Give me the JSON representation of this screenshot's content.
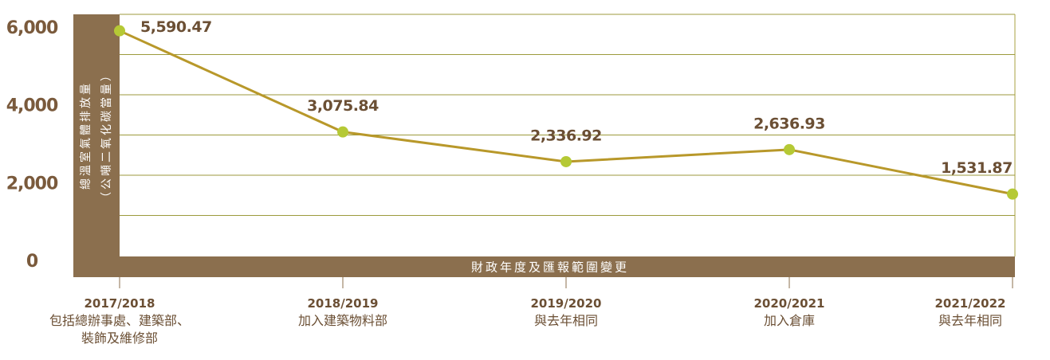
{
  "chart_data": {
    "type": "line",
    "y_axis_label": [
      "總溫室氣體排放量",
      "（公噸二氧化碳當量）"
    ],
    "x_axis_label": "財政年度及匯報範圍變更",
    "categories": [
      "2017/2018",
      "2018/2019",
      "2019/2020",
      "2020/2021",
      "2021/2022"
    ],
    "category_notes": [
      "包括總辦事處、建築部、裝飾及維修部",
      "加入建築物料部",
      "與去年相同",
      "加入倉庫",
      "與去年相同"
    ],
    "series": [
      {
        "name": "總溫室氣體排放量",
        "color": "#b8982a",
        "marker_color": "#b5c935",
        "values": [
          5590.47,
          3075.84,
          2336.92,
          2636.93,
          1531.87
        ],
        "value_labels": [
          "5,590.47",
          "3,075.84",
          "2,336.92",
          "2,636.93",
          "1,531.87"
        ]
      }
    ],
    "ylim": [
      0,
      6000
    ],
    "yticks": [
      0,
      {
        "value": 2000,
        "label": "2,000"
      },
      {
        "value": 4000,
        "label": "4,000"
      },
      {
        "value": 6000,
        "label": "6,000"
      }
    ],
    "grid_lines": [
      1000,
      2000,
      3000,
      4000,
      5000,
      6000
    ],
    "grid": true
  }
}
